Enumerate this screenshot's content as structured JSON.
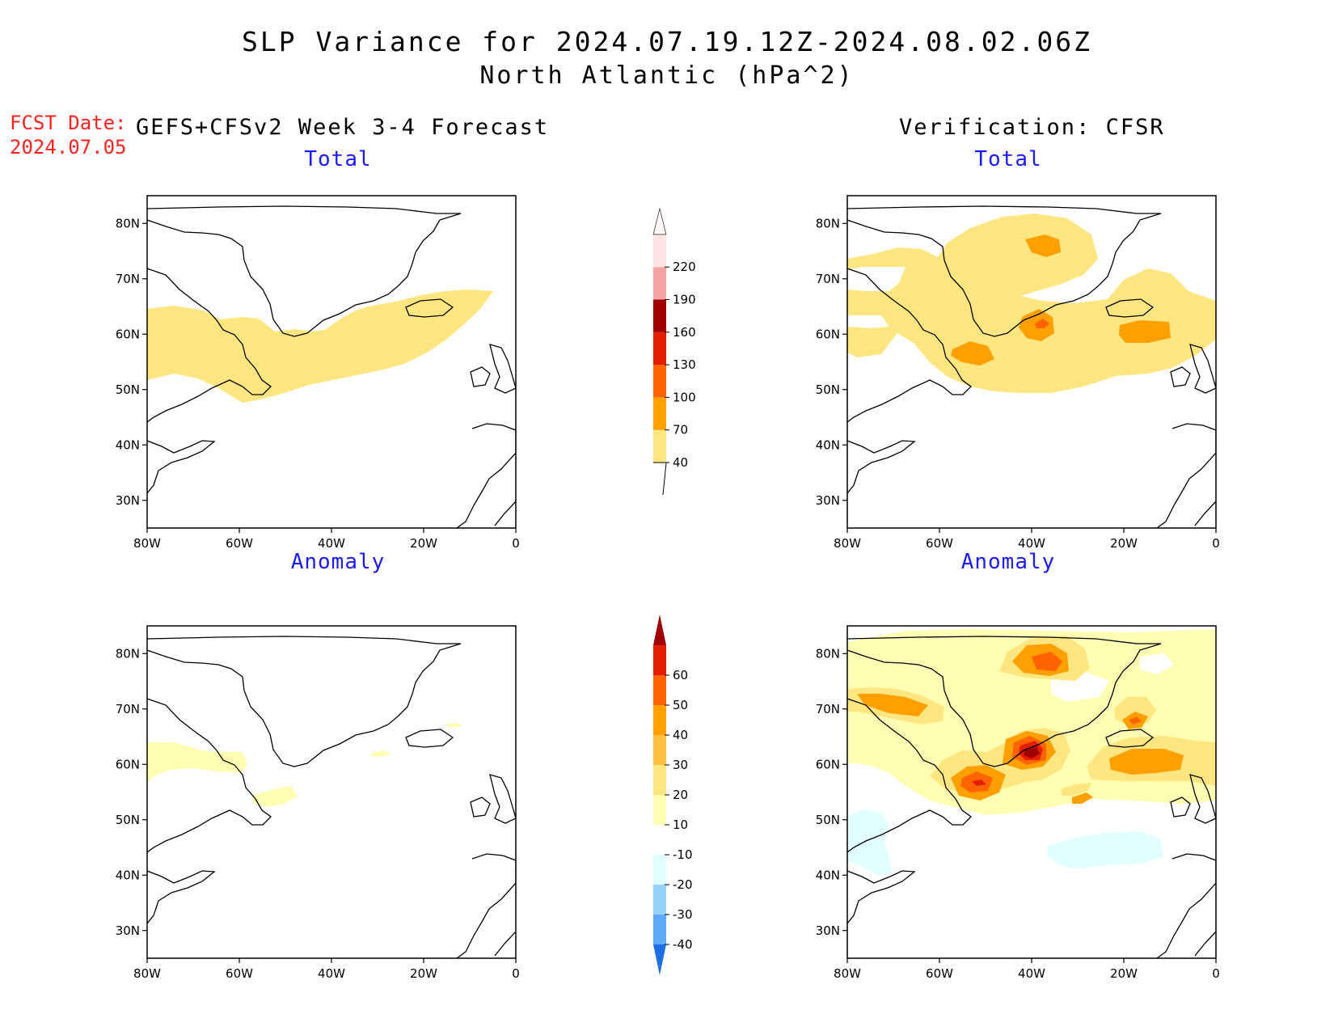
{
  "title": "SLP Variance for 2024.07.19.12Z-2024.08.02.06Z",
  "subtitle": "North Atlantic (hPa^2)",
  "forecast_date_label": "FCST Date:",
  "forecast_date_value": "2024.07.05",
  "left_header": "GEFS+CFSv2 Week 3-4 Forecast",
  "right_header": "Verification: CFSR",
  "panels": {
    "fc_total": {
      "title": "Total"
    },
    "fc_anom": {
      "title": "Anomaly"
    },
    "ver_total": {
      "title": "Total"
    },
    "ver_anom": {
      "title": "Anomaly"
    }
  },
  "axes": {
    "lat_ticks": [
      "30N",
      "40N",
      "50N",
      "60N",
      "70N",
      "80N"
    ],
    "lon_ticks": [
      "80W",
      "60W",
      "40W",
      "20W",
      "0"
    ],
    "lat_range": [
      25,
      85
    ],
    "lon_range": [
      -80,
      0
    ]
  },
  "colorbars": {
    "total": {
      "levels": [
        "40",
        "70",
        "100",
        "130",
        "160",
        "190",
        "220"
      ],
      "colors": [
        "#ffe680",
        "#ffa000",
        "#ff6400",
        "#e61e00",
        "#a00000",
        "#f4a3a3",
        "#ffe4e4"
      ]
    },
    "anomaly": {
      "levels": [
        "-40",
        "-30",
        "-20",
        "-10",
        "10",
        "20",
        "30",
        "40",
        "50",
        "60"
      ],
      "colors": [
        "#1e6ee6",
        "#5aaaf5",
        "#96d2fa",
        "#e1ffff",
        "#ffffff",
        "#ffffb4",
        "#ffe680",
        "#ffc040",
        "#ffa000",
        "#ff6400",
        "#e61e00",
        "#a00000"
      ]
    }
  }
}
